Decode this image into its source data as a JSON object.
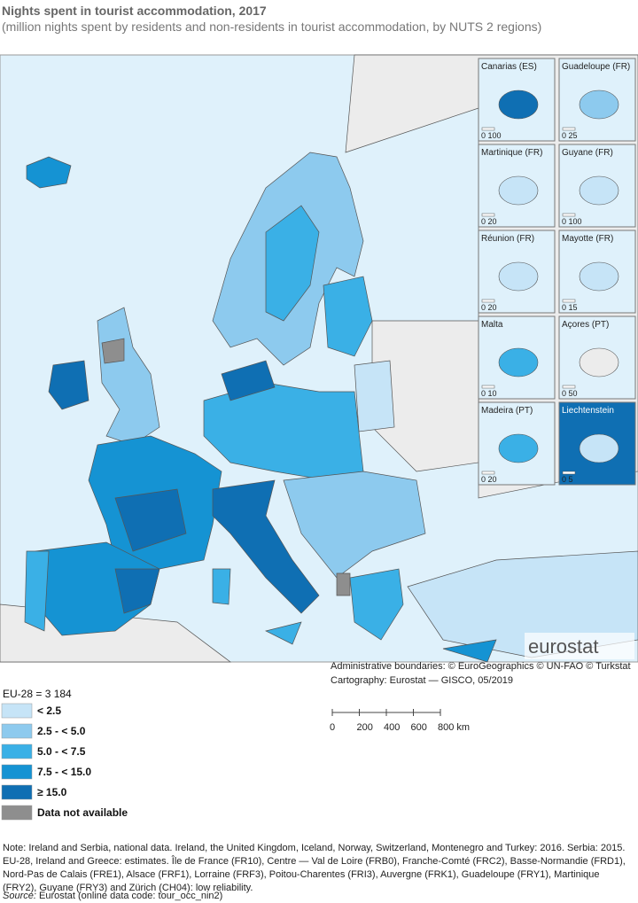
{
  "header": {
    "title": "Nights spent in tourist accommodation, 2017",
    "subtitle": "(million nights spent by residents and non-residents in tourist accommodation, by NUTS 2 regions)"
  },
  "insets": [
    {
      "label": "Canarias (ES)",
      "scale": "0 100"
    },
    {
      "label": "Guadeloupe (FR)",
      "scale": "0 25"
    },
    {
      "label": "Martinique (FR)",
      "scale": "0 20"
    },
    {
      "label": "Guyane (FR)",
      "scale": "0 100"
    },
    {
      "label": "Réunion (FR)",
      "scale": "0 20"
    },
    {
      "label": "Mayotte (FR)",
      "scale": "0 15"
    },
    {
      "label": "Malta",
      "scale": "0 10"
    },
    {
      "label": "Açores (PT)",
      "scale": "0 50"
    },
    {
      "label": "Madeira (PT)",
      "scale": "0 20"
    },
    {
      "label": "Liechtenstein",
      "scale": "0 5"
    }
  ],
  "logo": "eurostat",
  "credits": [
    "Administrative boundaries: © EuroGeographics © UN-FAO © Turkstat",
    "Cartography: Eurostat — GISCO, 05/2019"
  ],
  "legend": {
    "total": "EU-28 = 3 184",
    "items": [
      {
        "label": "< 2.5",
        "color": "#c6e4f7"
      },
      {
        "label": "2.5 - < 5.0",
        "color": "#8dcaee"
      },
      {
        "label": "5.0 - < 7.5",
        "color": "#3ab0e6"
      },
      {
        "label": "7.5 - < 15.0",
        "color": "#1593d3"
      },
      {
        "label": "≥ 15.0",
        "color": "#0f6fb3"
      },
      {
        "label": "Data not available",
        "color": "#8e8e8e"
      }
    ]
  },
  "scale_bar": [
    "0",
    "200",
    "400",
    "600",
    "800 km"
  ],
  "note": "Note: Ireland and Serbia, national data. Ireland, the United Kingdom, Iceland, Norway, Switzerland, Montenegro and Turkey: 2016. Serbia: 2015. EU-28, Ireland and Greece: estimates. Île de France (FR10), Centre — Val de Loire (FRB0), Franche-Comté (FRC2), Basse-Normandie (FRD1), Nord-Pas de Calais (FRE1), Alsace (FRF1), Lorraine (FRF3), Poitou-Charentes (FRI3), Auvergne (FRK1), Guadeloupe (FRY1), Martinique (FRY2), Guyane (FRY3) and Zürich (CH04): low reliability.",
  "source": {
    "label": "Source:",
    "text": "Eurostat (online data code: tour_occ_nin2)"
  }
}
